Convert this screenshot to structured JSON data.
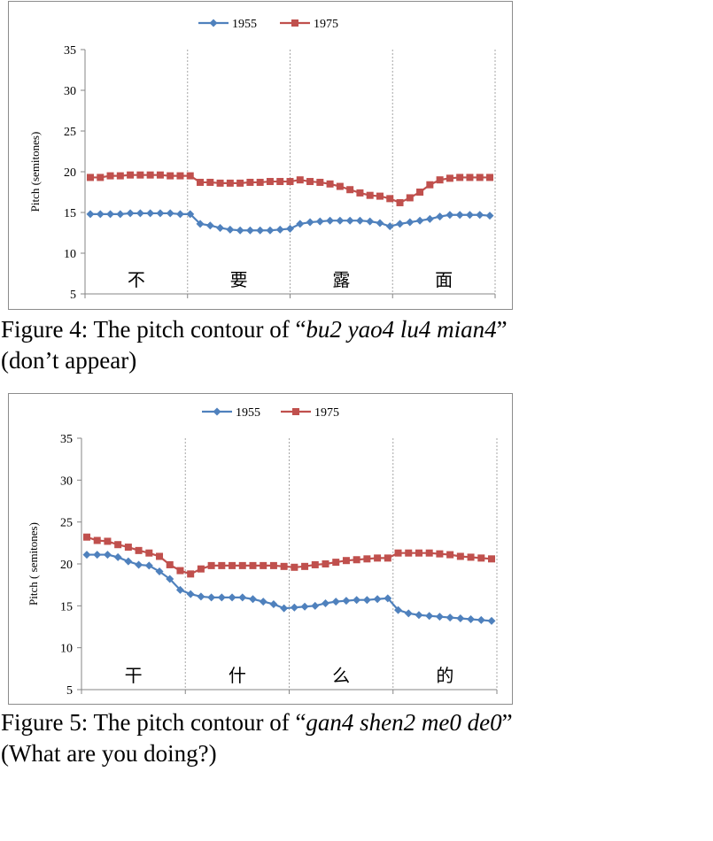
{
  "chart_data": [
    {
      "type": "line",
      "legend": [
        "1955",
        "1975"
      ],
      "legend_position": "top-center",
      "ylabel": "Pitch (semitones)",
      "ylim": [
        5,
        35
      ],
      "yticks": [
        5,
        10,
        15,
        20,
        25,
        30,
        35
      ],
      "syllables": [
        "不",
        "要",
        "露",
        "面"
      ],
      "grid": "vertical dashed lines at syllable boundaries",
      "series": [
        {
          "name": "1955",
          "color": "#4F81BD",
          "marker": "diamond",
          "values": [
            14.8,
            14.8,
            14.8,
            14.8,
            14.9,
            14.9,
            14.9,
            14.9,
            14.9,
            14.8,
            14.8,
            13.6,
            13.4,
            13.1,
            12.9,
            12.8,
            12.8,
            12.8,
            12.8,
            12.9,
            13.0,
            13.6,
            13.8,
            13.9,
            14.0,
            14.0,
            14.0,
            14.0,
            13.9,
            13.7,
            13.3,
            13.6,
            13.8,
            14.0,
            14.2,
            14.5,
            14.7,
            14.7,
            14.7,
            14.7,
            14.6
          ]
        },
        {
          "name": "1975",
          "color": "#C0504D",
          "marker": "square",
          "values": [
            19.3,
            19.3,
            19.5,
            19.5,
            19.6,
            19.6,
            19.6,
            19.6,
            19.5,
            19.5,
            19.5,
            18.7,
            18.7,
            18.6,
            18.6,
            18.6,
            18.7,
            18.7,
            18.8,
            18.8,
            18.8,
            19.0,
            18.8,
            18.7,
            18.5,
            18.2,
            17.8,
            17.4,
            17.1,
            17.0,
            16.7,
            16.2,
            16.8,
            17.5,
            18.4,
            19.0,
            19.2,
            19.3,
            19.3,
            19.3,
            19.3
          ]
        }
      ]
    },
    {
      "type": "line",
      "legend": [
        "1955",
        "1975"
      ],
      "legend_position": "top-center",
      "ylabel": "Pitch ( semitones)",
      "ylim": [
        5,
        35
      ],
      "yticks": [
        5,
        10,
        15,
        20,
        25,
        30,
        35
      ],
      "syllables": [
        "干",
        "什",
        "么",
        "的"
      ],
      "grid": "vertical dashed lines at syllable boundaries",
      "series": [
        {
          "name": "1955",
          "color": "#4F81BD",
          "marker": "diamond",
          "values": [
            21.1,
            21.1,
            21.1,
            20.8,
            20.3,
            19.9,
            19.8,
            19.1,
            18.2,
            16.9,
            16.4,
            16.1,
            16.0,
            16.0,
            16.0,
            16.0,
            15.8,
            15.5,
            15.2,
            14.7,
            14.8,
            14.9,
            15.0,
            15.3,
            15.5,
            15.6,
            15.7,
            15.7,
            15.8,
            15.9,
            14.5,
            14.1,
            13.9,
            13.8,
            13.7,
            13.6,
            13.5,
            13.4,
            13.3,
            13.2
          ]
        },
        {
          "name": "1975",
          "color": "#C0504D",
          "marker": "square",
          "values": [
            23.2,
            22.8,
            22.7,
            22.3,
            22.0,
            21.6,
            21.3,
            20.9,
            19.9,
            19.2,
            18.8,
            19.4,
            19.8,
            19.8,
            19.8,
            19.8,
            19.8,
            19.8,
            19.8,
            19.7,
            19.6,
            19.7,
            19.9,
            20.0,
            20.2,
            20.4,
            20.5,
            20.6,
            20.7,
            20.7,
            21.3,
            21.3,
            21.3,
            21.3,
            21.2,
            21.1,
            20.9,
            20.8,
            20.7,
            20.6
          ]
        }
      ]
    }
  ],
  "captions": [
    {
      "prefix": "Figure 4: The pitch contour of “",
      "italic": "bu2 yao4 lu4 mian4",
      "suffix": "” (don’t appear)"
    },
    {
      "prefix": "Figure 5: The pitch contour of “",
      "italic": "gan4 shen2 me0 de0",
      "suffix": "” (What are you doing?)"
    }
  ]
}
